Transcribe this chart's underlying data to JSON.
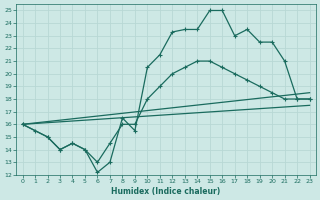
{
  "xlabel": "Humidex (Indice chaleur)",
  "background_color": "#cde8e5",
  "grid_color": "#b8d8d5",
  "line_color": "#1a6b5e",
  "xlim": [
    -0.5,
    23.5
  ],
  "ylim": [
    12,
    25.5
  ],
  "xticks": [
    0,
    1,
    2,
    3,
    4,
    5,
    6,
    7,
    8,
    9,
    10,
    11,
    12,
    13,
    14,
    15,
    16,
    17,
    18,
    19,
    20,
    21,
    22,
    23
  ],
  "yticks": [
    12,
    13,
    14,
    15,
    16,
    17,
    18,
    19,
    20,
    21,
    22,
    23,
    24,
    25
  ],
  "line1_x": [
    0,
    1,
    2,
    3,
    4,
    5,
    6,
    7,
    8,
    9,
    10,
    11,
    12,
    13,
    14,
    15,
    16,
    17,
    18,
    19,
    20,
    21,
    22,
    23
  ],
  "line1_y": [
    16,
    15.5,
    15,
    14,
    14.5,
    14,
    12.2,
    13,
    16.5,
    15.5,
    20.5,
    21.5,
    23.3,
    23.5,
    23.5,
    25,
    25,
    23,
    23.5,
    22.5,
    22.5,
    21,
    18,
    18
  ],
  "line2_x": [
    0,
    2,
    3,
    4,
    5,
    6,
    7,
    8,
    9,
    10,
    11,
    12,
    13,
    14,
    15,
    16,
    17,
    18,
    19,
    20,
    21,
    22,
    23
  ],
  "line2_y": [
    16,
    15,
    14,
    14.5,
    14,
    13,
    14.5,
    16,
    16,
    18,
    19,
    20,
    20.5,
    21,
    21,
    20.5,
    20,
    19.5,
    19,
    18.5,
    18,
    18,
    18
  ],
  "line3_x": [
    0,
    23
  ],
  "line3_y": [
    16,
    18.5
  ],
  "line4_x": [
    0,
    23
  ],
  "line4_y": [
    16,
    17.5
  ]
}
